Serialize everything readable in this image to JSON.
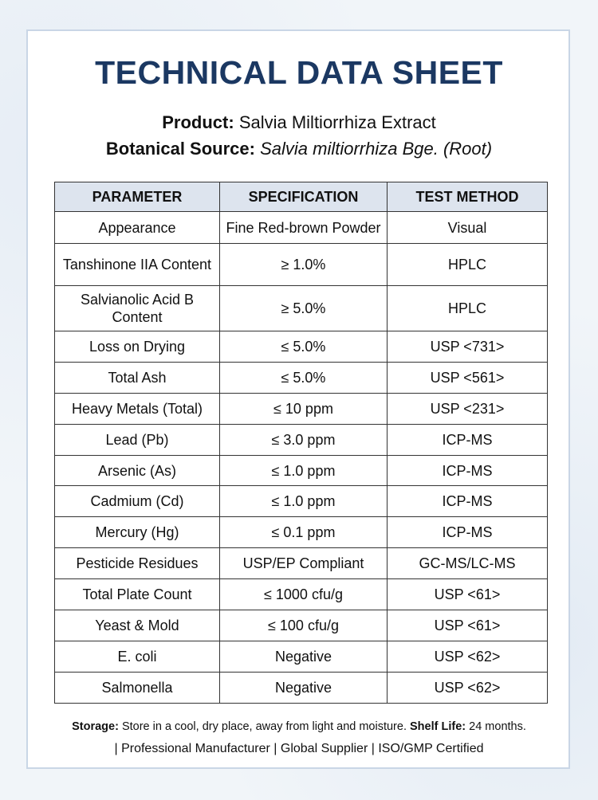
{
  "header": {
    "title": "TECHNICAL DATA SHEET",
    "product": {
      "label": "Product:",
      "value": "Salvia Miltiorrhiza Extract"
    },
    "botanical_source": {
      "label": "Botanical Source:",
      "value": "Salvia miltiorrhiza Bge. (Root)"
    }
  },
  "table": {
    "columns": [
      "PARAMETER",
      "SPECIFICATION",
      "TEST METHOD"
    ],
    "rows": [
      [
        "Appearance",
        "Fine Red-brown Powder",
        "Visual"
      ],
      [
        "Tanshinone IIA Content",
        "≥ 1.0%",
        "HPLC"
      ],
      [
        "Salvianolic Acid B Content",
        "≥ 5.0%",
        "HPLC"
      ],
      [
        "Loss on Drying",
        "≤ 5.0%",
        "USP <731>"
      ],
      [
        "Total Ash",
        "≤ 5.0%",
        "USP <561>"
      ],
      [
        "Heavy Metals (Total)",
        "≤ 10 ppm",
        "USP <231>"
      ],
      [
        "Lead (Pb)",
        "≤ 3.0 ppm",
        "ICP-MS"
      ],
      [
        "Arsenic (As)",
        "≤ 1.0 ppm",
        "ICP-MS"
      ],
      [
        "Cadmium (Cd)",
        "≤ 1.0 ppm",
        "ICP-MS"
      ],
      [
        "Mercury (Hg)",
        "≤ 0.1 ppm",
        "ICP-MS"
      ],
      [
        "Pesticide Residues",
        "USP/EP Compliant",
        "GC-MS/LC-MS"
      ],
      [
        "Total Plate Count",
        "≤ 1000 cfu/g",
        "USP <61>"
      ],
      [
        "Yeast & Mold",
        "≤ 100 cfu/g",
        "USP <61>"
      ],
      [
        "E. coli",
        "Negative",
        "USP <62>"
      ],
      [
        "Salmonella",
        "Negative",
        "USP <62>"
      ]
    ]
  },
  "footer": {
    "storage": {
      "label": "Storage:",
      "value": "Store in a cool, dry place, away from light and moisture."
    },
    "shelf_life": {
      "label": "Shelf Life:",
      "value": "24 months."
    },
    "tagline": "| Professional Manufacturer | Global Supplier | ISO/GMP Certified"
  }
}
